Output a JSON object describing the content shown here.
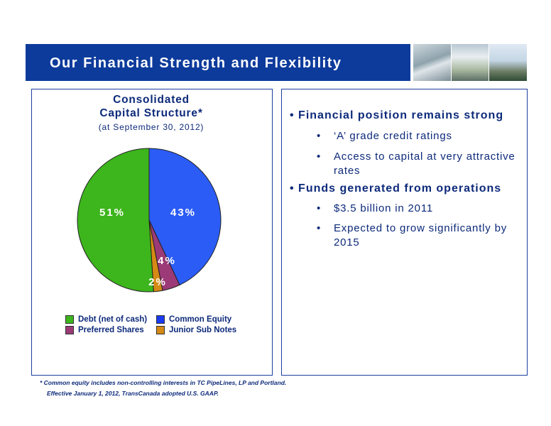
{
  "header": {
    "title": "Our Financial Strength and Flexibility"
  },
  "chart_data": {
    "type": "pie",
    "title_line1": "Consolidated",
    "title_line2": "Capital Structure*",
    "subtitle": "(at September 30, 2012)",
    "slices": [
      {
        "name": "Common Equity",
        "value": 43,
        "label": "43%",
        "color": "#2b5cf5"
      },
      {
        "name": "Preferred Shares",
        "value": 4,
        "label": "4%",
        "color": "#9b3a77"
      },
      {
        "name": "Junior Sub Notes",
        "value": 2,
        "label": "2%",
        "color": "#d58a14"
      },
      {
        "name": "Debt (net of cash)",
        "value": 51,
        "label": "51%",
        "color": "#3db51c"
      }
    ],
    "legend": [
      "Debt (net of cash)",
      "Common Equity",
      "Preferred Shares",
      "Junior Sub Notes"
    ],
    "legend_placement": "bottom"
  },
  "bullets": [
    {
      "text": "Financial position remains strong",
      "sub": [
        "‘A’ grade credit ratings",
        "Access to capital at very attractive rates"
      ]
    },
    {
      "text": "Funds generated from operations",
      "sub": [
        "$3.5 billion in 2011",
        "Expected to grow significantly by 2015"
      ]
    }
  ],
  "footnote": {
    "line1": "*   Common equity includes non-controlling interests in TC PipeLines, LP and Portland.",
    "line2": "Effective January 1, 2012, TransCanada adopted U.S. GAAP."
  },
  "colors": {
    "banner": "#0d3b9c",
    "text": "#0d2a7a",
    "panel_border": "#1c3f9e"
  }
}
